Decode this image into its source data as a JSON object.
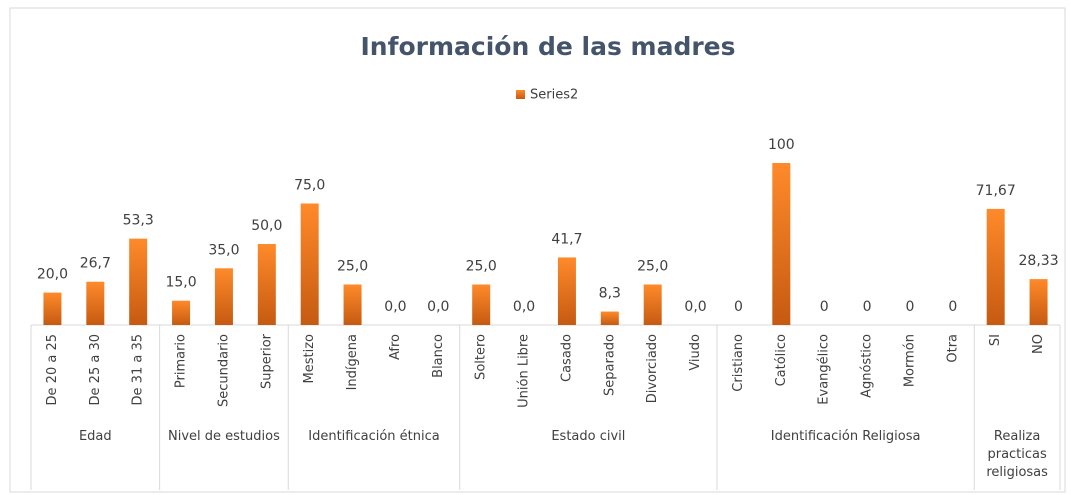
{
  "chart_data": {
    "type": "bar",
    "title": "Información de las madres",
    "groups": [
      {
        "name": "Edad",
        "categories": [
          "De 20 a 25",
          "De 25 a 30",
          "De 31 a 35"
        ]
      },
      {
        "name": "Nivel de estudios",
        "categories": [
          "Primario",
          "Secundario",
          "Superior"
        ]
      },
      {
        "name": "Identificación étnica",
        "categories": [
          "Mestizo",
          "Indígena",
          "Afro",
          "Blanco"
        ]
      },
      {
        "name": "Estado civil",
        "categories": [
          "Soltero",
          "Unión Libre",
          "Casado",
          "Separado",
          "Divorciado",
          "Viudo"
        ]
      },
      {
        "name": "Identificación Religiosa",
        "categories": [
          "Cristiano",
          "Católico",
          "Evangélico",
          "Agnóstico",
          "Mormón",
          "Otra"
        ]
      },
      {
        "name": "Realiza practicas religiosas",
        "categories": [
          "SI",
          "NO"
        ]
      }
    ],
    "series": [
      {
        "name": "Series2",
        "color": "#ed7d31",
        "values": [
          20.0,
          26.7,
          53.3,
          15.0,
          35.0,
          50.0,
          75.0,
          25.0,
          0.0,
          0.0,
          25.0,
          0.0,
          41.7,
          8.3,
          25.0,
          0.0,
          0,
          100,
          0,
          0,
          0,
          0,
          71.67,
          28.33
        ],
        "value_labels": [
          "20,0",
          "26,7",
          "53,3",
          "15,0",
          "35,0",
          "50,0",
          "75,0",
          "25,0",
          "0,0",
          "0,0",
          "25,0",
          "0,0",
          "41,7",
          "8,3",
          "25,0",
          "0,0",
          "0",
          "100",
          "0",
          "0",
          "0",
          "0",
          "71,67",
          "28,33"
        ]
      }
    ]
  }
}
